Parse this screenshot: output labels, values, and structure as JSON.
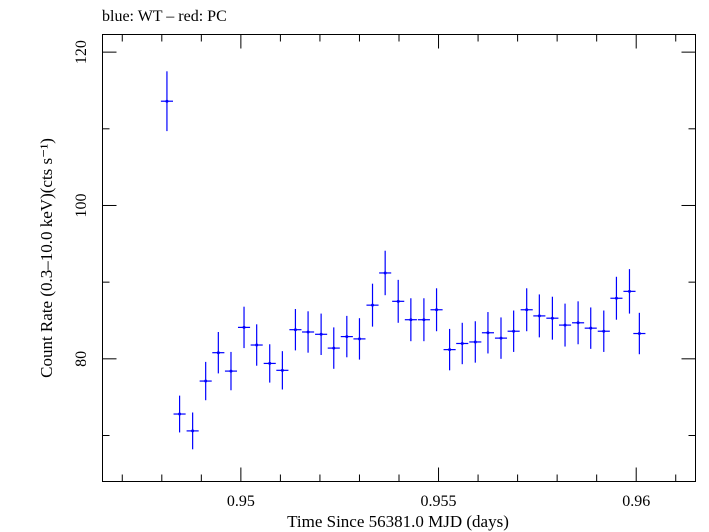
{
  "chart_data": {
    "type": "scatter",
    "title": "blue: WT – red: PC",
    "xlabel": "Time Since 56381.0 MJD (days)",
    "ylabel": "Count Rate (0.3–10.0 keV)(cts s⁻¹)",
    "xlim": [
      0.9465,
      0.9615
    ],
    "ylim": [
      64.0,
      122.3
    ],
    "x_ticks": [
      {
        "value": 0.95,
        "label": "0.95"
      },
      {
        "value": 0.955,
        "label": "0.955"
      },
      {
        "value": 0.96,
        "label": "0.96"
      }
    ],
    "x_minor_ticks": [
      0.947,
      0.948,
      0.949,
      0.951,
      0.952,
      0.953,
      0.954,
      0.956,
      0.957,
      0.958,
      0.959,
      0.961
    ],
    "y_ticks": [
      {
        "value": 80,
        "label": "80"
      },
      {
        "value": 100,
        "label": "100"
      },
      {
        "value": 120,
        "label": "120"
      }
    ],
    "y_minor_ticks": [
      70,
      90,
      110
    ],
    "grid": false,
    "series": [
      {
        "color": "#0000ff",
        "x_err": 0.000153,
        "points": [
          {
            "x": 0.94813,
            "y": 113.6,
            "err": 3.9
          },
          {
            "x": 0.94845,
            "y": 72.8,
            "err": 2.4
          },
          {
            "x": 0.94878,
            "y": 70.6,
            "err": 2.4
          },
          {
            "x": 0.94911,
            "y": 77.1,
            "err": 2.5
          },
          {
            "x": 0.94943,
            "y": 80.8,
            "err": 2.7
          },
          {
            "x": 0.94975,
            "y": 78.4,
            "err": 2.5
          },
          {
            "x": 0.95008,
            "y": 84.1,
            "err": 2.7
          },
          {
            "x": 0.9504,
            "y": 81.8,
            "err": 2.7
          },
          {
            "x": 0.95073,
            "y": 79.4,
            "err": 2.5
          },
          {
            "x": 0.95105,
            "y": 78.5,
            "err": 2.5
          },
          {
            "x": 0.95138,
            "y": 83.8,
            "err": 2.7
          },
          {
            "x": 0.9517,
            "y": 83.5,
            "err": 2.7
          },
          {
            "x": 0.95203,
            "y": 83.2,
            "err": 2.7
          },
          {
            "x": 0.95235,
            "y": 81.4,
            "err": 2.7
          },
          {
            "x": 0.95268,
            "y": 82.9,
            "err": 2.7
          },
          {
            "x": 0.953,
            "y": 82.6,
            "err": 2.7
          },
          {
            "x": 0.95333,
            "y": 87.0,
            "err": 2.8
          },
          {
            "x": 0.95365,
            "y": 91.2,
            "err": 2.9
          },
          {
            "x": 0.95398,
            "y": 87.5,
            "err": 2.8
          },
          {
            "x": 0.9543,
            "y": 85.1,
            "err": 2.8
          },
          {
            "x": 0.95463,
            "y": 85.1,
            "err": 2.8
          },
          {
            "x": 0.95495,
            "y": 86.4,
            "err": 2.8
          },
          {
            "x": 0.95528,
            "y": 81.2,
            "err": 2.7
          },
          {
            "x": 0.9556,
            "y": 82.0,
            "err": 2.7
          },
          {
            "x": 0.95593,
            "y": 82.2,
            "err": 2.7
          },
          {
            "x": 0.95625,
            "y": 83.4,
            "err": 2.7
          },
          {
            "x": 0.95658,
            "y": 82.7,
            "err": 2.7
          },
          {
            "x": 0.9569,
            "y": 83.6,
            "err": 2.7
          },
          {
            "x": 0.95723,
            "y": 86.4,
            "err": 2.8
          },
          {
            "x": 0.95755,
            "y": 85.6,
            "err": 2.8
          },
          {
            "x": 0.95788,
            "y": 85.3,
            "err": 2.8
          },
          {
            "x": 0.9582,
            "y": 84.4,
            "err": 2.8
          },
          {
            "x": 0.95853,
            "y": 84.7,
            "err": 2.8
          },
          {
            "x": 0.95885,
            "y": 84.0,
            "err": 2.7
          },
          {
            "x": 0.95918,
            "y": 83.6,
            "err": 2.7
          },
          {
            "x": 0.9595,
            "y": 87.9,
            "err": 2.8
          },
          {
            "x": 0.95983,
            "y": 88.8,
            "err": 2.9
          },
          {
            "x": 0.96008,
            "y": 83.3,
            "err": 2.7
          }
        ]
      }
    ]
  }
}
